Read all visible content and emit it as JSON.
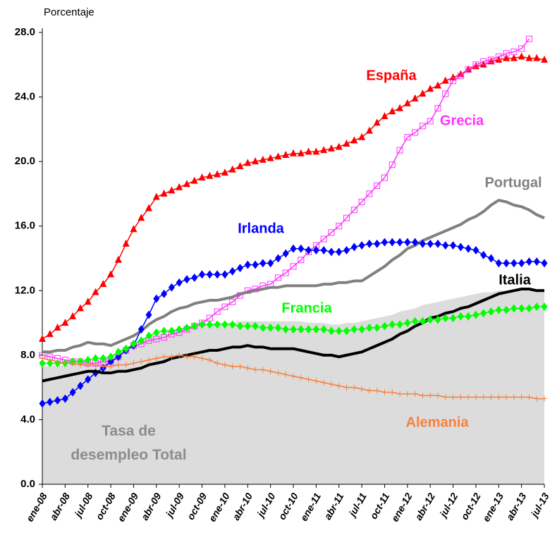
{
  "chart_data": {
    "type": "line",
    "y_label": "Porcentaje",
    "ylim": [
      0,
      28
    ],
    "yticks": [
      {
        "value": 0,
        "label": "0.0"
      },
      {
        "value": 4,
        "label": "4.0"
      },
      {
        "value": 8,
        "label": "8.0"
      },
      {
        "value": 12,
        "label": "12.0"
      },
      {
        "value": 16,
        "label": "16.0"
      },
      {
        "value": 20,
        "label": "20.0"
      },
      {
        "value": 24,
        "label": "24.0"
      },
      {
        "value": 28,
        "label": "28.0"
      }
    ],
    "categories": [
      "ene-08",
      null,
      null,
      "abr-08",
      null,
      null,
      "jul-08",
      null,
      null,
      "oct-08",
      null,
      null,
      "ene-09",
      null,
      null,
      "abr-09",
      null,
      null,
      "jul-09",
      null,
      null,
      "oct-09",
      null,
      null,
      "ene-10",
      null,
      null,
      "abr-10",
      null,
      null,
      "jul-10",
      null,
      null,
      "oct-10",
      null,
      null,
      "ene-11",
      null,
      null,
      "abr-11",
      null,
      null,
      "jul-11",
      null,
      null,
      "oct-11",
      null,
      null,
      "ene-12",
      null,
      null,
      "abr-12",
      null,
      null,
      "jul-12",
      null,
      null,
      "oct-12",
      null,
      null,
      "ene-13",
      null,
      null,
      "abr-13",
      null,
      null,
      "jul-13"
    ],
    "area": {
      "name": "Tasa de desempleo Total",
      "color": "#dcdcdc",
      "values": [
        7.3,
        7.3,
        7.4,
        7.4,
        7.4,
        7.5,
        7.5,
        7.6,
        7.8,
        7.9,
        8.2,
        8.4,
        8.7,
        8.9,
        9.1,
        9.3,
        9.4,
        9.5,
        9.6,
        9.7,
        9.8,
        9.9,
        9.9,
        10.0,
        10.0,
        10.0,
        10.1,
        10.1,
        10.1,
        10.1,
        10.1,
        10.1,
        10.1,
        10.1,
        10.1,
        10.0,
        10.0,
        10.0,
        9.9,
        9.9,
        10.0,
        10.0,
        10.1,
        10.2,
        10.3,
        10.4,
        10.5,
        10.7,
        10.8,
        10.9,
        11.1,
        11.2,
        11.3,
        11.4,
        11.5,
        11.6,
        11.7,
        11.8,
        11.9,
        11.9,
        12.0,
        12.0,
        12.1,
        12.1,
        12.1,
        12.0,
        12.0
      ]
    },
    "series": [
      {
        "name": "España",
        "color": "#ff0000",
        "marker": "triangle",
        "values": [
          9.0,
          9.3,
          9.7,
          10.0,
          10.4,
          10.9,
          11.3,
          11.9,
          12.4,
          13.0,
          13.9,
          14.9,
          15.8,
          16.5,
          17.1,
          17.8,
          18.0,
          18.2,
          18.4,
          18.6,
          18.8,
          19.0,
          19.1,
          19.2,
          19.3,
          19.5,
          19.7,
          19.9,
          20.0,
          20.1,
          20.2,
          20.3,
          20.4,
          20.5,
          20.5,
          20.6,
          20.6,
          20.7,
          20.8,
          20.9,
          21.1,
          21.3,
          21.5,
          21.9,
          22.4,
          22.8,
          23.1,
          23.3,
          23.6,
          23.9,
          24.2,
          24.5,
          24.7,
          25.0,
          25.2,
          25.4,
          25.7,
          25.9,
          26.0,
          26.2,
          26.3,
          26.4,
          26.4,
          26.5,
          26.4,
          26.4,
          26.3
        ]
      },
      {
        "name": "Grecia",
        "color": "#ff33ff",
        "marker": "square",
        "values": [
          8.0,
          7.9,
          7.8,
          7.7,
          7.6,
          7.6,
          7.5,
          7.5,
          7.6,
          7.6,
          7.9,
          8.3,
          8.6,
          8.7,
          8.9,
          9.0,
          9.1,
          9.3,
          9.4,
          9.6,
          9.8,
          10.0,
          10.3,
          10.7,
          11.0,
          11.3,
          11.7,
          12.0,
          12.1,
          12.3,
          12.4,
          12.8,
          13.1,
          13.5,
          13.9,
          14.4,
          14.8,
          15.2,
          15.6,
          16.0,
          16.5,
          17.0,
          17.5,
          18.0,
          18.5,
          19.0,
          19.8,
          20.7,
          21.5,
          21.8,
          22.2,
          22.5,
          23.3,
          24.2,
          25.0,
          25.3,
          25.7,
          26.0,
          26.2,
          26.3,
          26.5,
          26.7,
          26.8,
          27.0,
          27.6,
          null,
          null
        ]
      },
      {
        "name": "Portugal",
        "color": "#808080",
        "marker": "none",
        "values": [
          8.2,
          8.2,
          8.3,
          8.3,
          8.5,
          8.6,
          8.8,
          8.7,
          8.7,
          8.6,
          8.8,
          9.0,
          9.2,
          9.5,
          9.9,
          10.2,
          10.4,
          10.7,
          10.9,
          11.0,
          11.2,
          11.3,
          11.4,
          11.4,
          11.5,
          11.6,
          11.8,
          11.9,
          12.0,
          12.1,
          12.2,
          12.2,
          12.3,
          12.3,
          12.3,
          12.3,
          12.3,
          12.4,
          12.4,
          12.5,
          12.5,
          12.6,
          12.6,
          12.9,
          13.2,
          13.5,
          13.9,
          14.2,
          14.6,
          14.8,
          15.1,
          15.3,
          15.5,
          15.7,
          15.9,
          16.1,
          16.4,
          16.6,
          16.9,
          17.3,
          17.6,
          17.5,
          17.3,
          17.2,
          17.0,
          16.7,
          16.5
        ]
      },
      {
        "name": "Irlanda",
        "color": "#0000ff",
        "marker": "diamond",
        "values": [
          5.0,
          5.1,
          5.2,
          5.3,
          5.7,
          6.1,
          6.5,
          6.9,
          7.2,
          7.6,
          7.9,
          8.3,
          8.6,
          9.6,
          10.5,
          11.5,
          11.8,
          12.2,
          12.5,
          12.7,
          12.8,
          13.0,
          13.0,
          13.0,
          13.0,
          13.2,
          13.4,
          13.6,
          13.6,
          13.7,
          13.7,
          14.0,
          14.3,
          14.6,
          14.6,
          14.5,
          14.5,
          14.5,
          14.4,
          14.4,
          14.5,
          14.7,
          14.8,
          14.9,
          14.9,
          15.0,
          15.0,
          15.0,
          15.0,
          15.0,
          14.9,
          14.9,
          14.9,
          14.8,
          14.8,
          14.7,
          14.6,
          14.5,
          14.2,
          14.0,
          13.7,
          13.7,
          13.7,
          13.7,
          13.8,
          13.8,
          13.7
        ]
      },
      {
        "name": "Italia",
        "color": "#000000",
        "marker": "none",
        "values": [
          6.4,
          6.5,
          6.6,
          6.7,
          6.8,
          6.9,
          7.0,
          7.0,
          6.9,
          6.9,
          7.0,
          7.0,
          7.1,
          7.2,
          7.4,
          7.5,
          7.6,
          7.8,
          7.9,
          8.0,
          8.1,
          8.2,
          8.3,
          8.3,
          8.4,
          8.5,
          8.5,
          8.6,
          8.5,
          8.5,
          8.4,
          8.4,
          8.4,
          8.4,
          8.3,
          8.2,
          8.1,
          8.0,
          8.0,
          7.9,
          8.0,
          8.1,
          8.2,
          8.4,
          8.6,
          8.8,
          9.0,
          9.3,
          9.5,
          9.8,
          10.0,
          10.3,
          10.4,
          10.6,
          10.7,
          10.9,
          11.0,
          11.2,
          11.4,
          11.6,
          11.8,
          11.9,
          12.0,
          12.1,
          12.1,
          12.0,
          12.0
        ]
      },
      {
        "name": "Francia",
        "color": "#00ff00",
        "marker": "diamond",
        "values": [
          7.5,
          7.5,
          7.5,
          7.5,
          7.6,
          7.6,
          7.7,
          7.8,
          7.8,
          7.9,
          8.2,
          8.4,
          8.7,
          8.9,
          9.2,
          9.4,
          9.5,
          9.5,
          9.6,
          9.7,
          9.8,
          9.9,
          9.9,
          9.9,
          9.9,
          9.9,
          9.8,
          9.8,
          9.8,
          9.7,
          9.7,
          9.7,
          9.6,
          9.6,
          9.6,
          9.6,
          9.6,
          9.6,
          9.5,
          9.5,
          9.5,
          9.6,
          9.6,
          9.7,
          9.7,
          9.8,
          9.9,
          9.9,
          10.0,
          10.1,
          10.1,
          10.2,
          10.2,
          10.3,
          10.3,
          10.4,
          10.4,
          10.5,
          10.6,
          10.7,
          10.8,
          10.8,
          10.9,
          10.9,
          10.9,
          11.0,
          11.0
        ]
      },
      {
        "name": "Alemania",
        "color": "#f7813b",
        "marker": "plus",
        "values": [
          7.8,
          7.7,
          7.6,
          7.5,
          7.5,
          7.4,
          7.4,
          7.4,
          7.3,
          7.3,
          7.4,
          7.4,
          7.5,
          7.6,
          7.7,
          7.8,
          7.9,
          7.9,
          8.0,
          7.9,
          7.9,
          7.8,
          7.7,
          7.5,
          7.4,
          7.3,
          7.3,
          7.2,
          7.1,
          7.1,
          7.0,
          6.9,
          6.8,
          6.7,
          6.6,
          6.5,
          6.4,
          6.3,
          6.2,
          6.1,
          6.0,
          6.0,
          5.9,
          5.8,
          5.8,
          5.7,
          5.7,
          5.6,
          5.6,
          5.6,
          5.5,
          5.5,
          5.5,
          5.4,
          5.4,
          5.4,
          5.4,
          5.4,
          5.4,
          5.4,
          5.4,
          5.4,
          5.4,
          5.4,
          5.4,
          5.3,
          5.3
        ]
      }
    ]
  }
}
